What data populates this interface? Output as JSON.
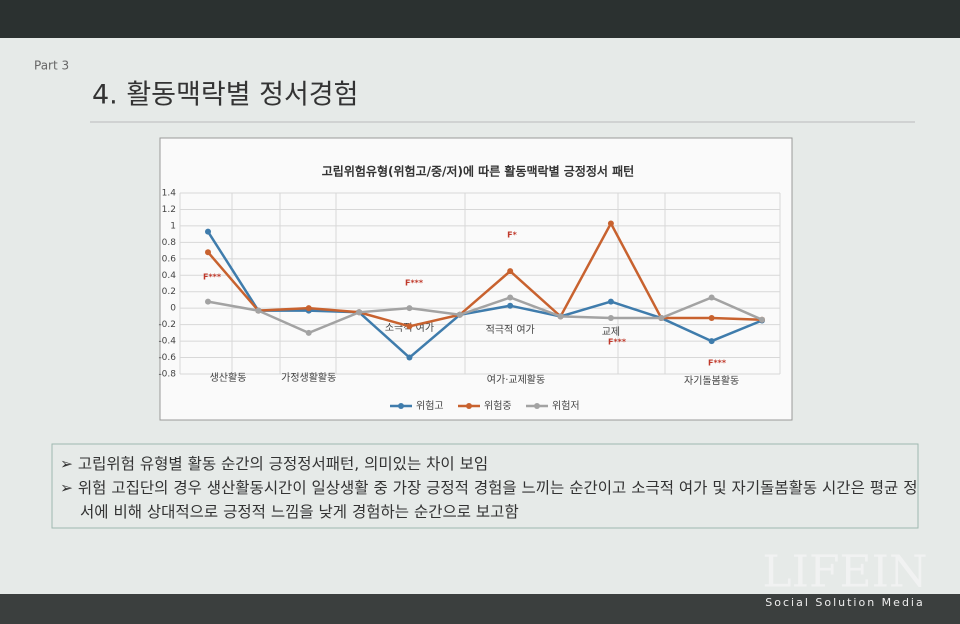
{
  "slide": {
    "part": "Part 3",
    "title": "4. 활동맥락별 정서경험",
    "bullets": [
      "고립위험 유형별 활동 순간의 긍정정서패턴, 의미있는 차이 보임",
      "위험 고집단의 경우 생산활동시간이 일상생활 중 가장 긍정적 경험을 느끼는 순간이고 소극적 여가 및 자기돌봄활동 시간은 평균 정서에 비해 상대적으로 긍정적 느낌을 낮게 경험하는 순간으로 보고함"
    ]
  },
  "watermark": {
    "brand": "LIFEIN",
    "tagline": "Social Solution Media"
  },
  "chart_data": {
    "type": "line",
    "title": "고립위험유형(위험고/중/저)에 따른 활동맥락별 긍정정서 패턴",
    "categories": [
      "생산활동",
      null,
      "가정생활활동",
      null,
      "소극적 여가",
      null,
      "적극적 여가",
      null,
      "교제",
      null,
      "자기돌봄활동",
      null
    ],
    "annotations": [
      "여가·교제활동",
      "F***",
      "F***",
      "F*",
      "F***",
      "F***"
    ],
    "series": [
      {
        "name": "위험고",
        "color": "#3f7cac",
        "values": [
          0.93,
          -0.03,
          -0.03,
          -0.05,
          -0.6,
          -0.08,
          0.03,
          -0.1,
          0.08,
          -0.12,
          -0.4,
          -0.15
        ]
      },
      {
        "name": "위험중",
        "color": "#c8622f",
        "values": [
          0.68,
          -0.03,
          0,
          -0.05,
          -0.22,
          -0.08,
          0.45,
          -0.1,
          1.03,
          -0.12,
          -0.12,
          -0.14
        ]
      },
      {
        "name": "위험저",
        "color": "#a3a3a3",
        "values": [
          0.08,
          -0.03,
          -0.3,
          -0.05,
          0,
          -0.08,
          0.13,
          -0.1,
          -0.12,
          -0.12,
          0.13,
          -0.14
        ]
      }
    ],
    "ylim": [
      -0.8,
      1.4
    ],
    "yticks": [
      1.4,
      1.2,
      1,
      0.8,
      0.6,
      0.4,
      0.2,
      0,
      -0.2,
      -0.4,
      -0.6,
      -0.8
    ],
    "grid": true,
    "legend": "bottom"
  }
}
